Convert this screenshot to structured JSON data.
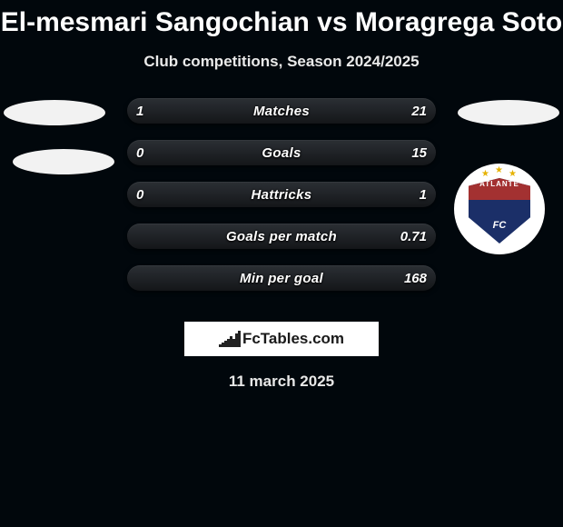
{
  "title": "El-mesmari Sangochian vs Moragrega Soto",
  "subtitle": "Club competitions, Season 2024/2025",
  "footer_brand": "FcTables.com",
  "date": "11 march 2025",
  "colors": {
    "background": "#01070c",
    "bar_top": "#2b2f34",
    "bar_bottom": "#141619",
    "text": "#ffffff",
    "placeholder": "#f2f2f2",
    "crest_primary": "#1b2f68",
    "crest_secondary": "#a33131",
    "crest_star": "#e6b200",
    "brand_bg": "#ffffff",
    "brand_text": "#1a1a1a"
  },
  "crest": {
    "top_text": "ATLANTE",
    "bottom_text": "FC"
  },
  "bars": [
    {
      "label": "Matches",
      "left": "1",
      "right": "21"
    },
    {
      "label": "Goals",
      "left": "0",
      "right": "15"
    },
    {
      "label": "Hattricks",
      "left": "0",
      "right": "1"
    },
    {
      "label": "Goals per match",
      "left": "",
      "right": "0.71"
    },
    {
      "label": "Min per goal",
      "left": "",
      "right": "168"
    }
  ],
  "sparkline_heights": [
    3,
    5,
    7,
    9,
    12,
    9,
    15,
    18
  ]
}
